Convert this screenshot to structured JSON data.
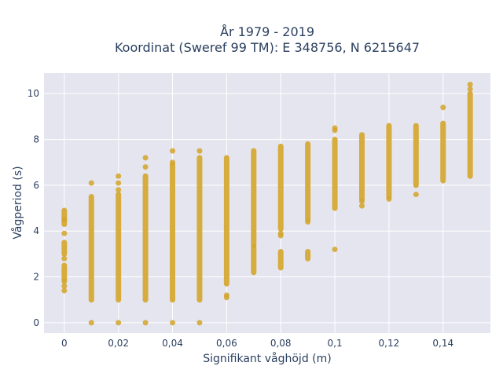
{
  "chart_data": {
    "type": "scatter",
    "title_line1": "År 1979 - 2019",
    "title_line2": "Koordinat (Sweref 99 TM): E 348756, N 6215647",
    "xlabel": "Signifikant våghöjd (m)",
    "ylabel": "Vågperiod (s)",
    "xlim": [
      -0.0075,
      0.1575
    ],
    "ylim": [
      -0.45,
      10.9
    ],
    "x_ticks": [
      0,
      0.02,
      0.04,
      0.06,
      0.08,
      0.1,
      0.12,
      0.14
    ],
    "x_tick_labels": [
      "0",
      "0,02",
      "0,04",
      "0,06",
      "0,08",
      "0,1",
      "0,12",
      "0,14"
    ],
    "y_ticks": [
      0,
      2,
      4,
      6,
      8,
      10
    ],
    "y_tick_labels": [
      "0",
      "2",
      "4",
      "6",
      "8",
      "10"
    ],
    "grid": true,
    "marker_color": "#d4a52a",
    "plot_bg": "#e5e5ef",
    "columns": [
      {
        "x": 0.0,
        "ranges": [
          [
            1.9,
            2.5
          ],
          [
            3.0,
            3.5
          ],
          [
            4.3,
            4.9
          ]
        ],
        "points": [
          1.4,
          1.6,
          1.8,
          2.8,
          3.9,
          4.5
        ]
      },
      {
        "x": 0.01,
        "ranges": [
          [
            1.0,
            5.5
          ]
        ],
        "points": [
          0,
          6.1
        ]
      },
      {
        "x": 0.02,
        "ranges": [
          [
            1.0,
            5.6
          ]
        ],
        "points": [
          0,
          5.8,
          6.1,
          6.4
        ]
      },
      {
        "x": 0.03,
        "ranges": [
          [
            1.0,
            6.4
          ]
        ],
        "points": [
          0,
          6.8,
          7.2
        ]
      },
      {
        "x": 0.04,
        "ranges": [
          [
            1.0,
            6.9
          ]
        ],
        "points": [
          0,
          7.0,
          7.5
        ]
      },
      {
        "x": 0.05,
        "ranges": [
          [
            1.0,
            7.2
          ]
        ],
        "points": [
          0,
          7.5
        ]
      },
      {
        "x": 0.06,
        "ranges": [
          [
            1.7,
            7.2
          ]
        ],
        "points": [
          1.1,
          1.2
        ]
      },
      {
        "x": 0.07,
        "ranges": [
          [
            2.2,
            3.3
          ],
          [
            3.4,
            7.5
          ]
        ],
        "points": []
      },
      {
        "x": 0.08,
        "ranges": [
          [
            2.4,
            3.1
          ],
          [
            4.1,
            7.7
          ]
        ],
        "points": [
          3.8,
          3.9
        ]
      },
      {
        "x": 0.09,
        "ranges": [
          [
            2.8,
            3.1
          ],
          [
            4.5,
            7.8
          ]
        ],
        "points": [
          4.4
        ]
      },
      {
        "x": 0.1,
        "ranges": [
          [
            5.0,
            8.0
          ]
        ],
        "points": [
          3.2,
          8.4,
          8.5
        ]
      },
      {
        "x": 0.11,
        "ranges": [
          [
            5.4,
            8.2
          ]
        ],
        "points": [
          5.1,
          5.3
        ]
      },
      {
        "x": 0.12,
        "ranges": [
          [
            5.5,
            8.6
          ]
        ],
        "points": [
          5.4
        ]
      },
      {
        "x": 0.13,
        "ranges": [
          [
            6.0,
            8.6
          ]
        ],
        "points": [
          5.6
        ]
      },
      {
        "x": 0.14,
        "ranges": [
          [
            6.2,
            8.7
          ]
        ],
        "points": [
          9.4
        ]
      },
      {
        "x": 0.15,
        "ranges": [
          [
            6.4,
            10.0
          ]
        ],
        "points": [
          10.2,
          10.4
        ]
      }
    ]
  }
}
